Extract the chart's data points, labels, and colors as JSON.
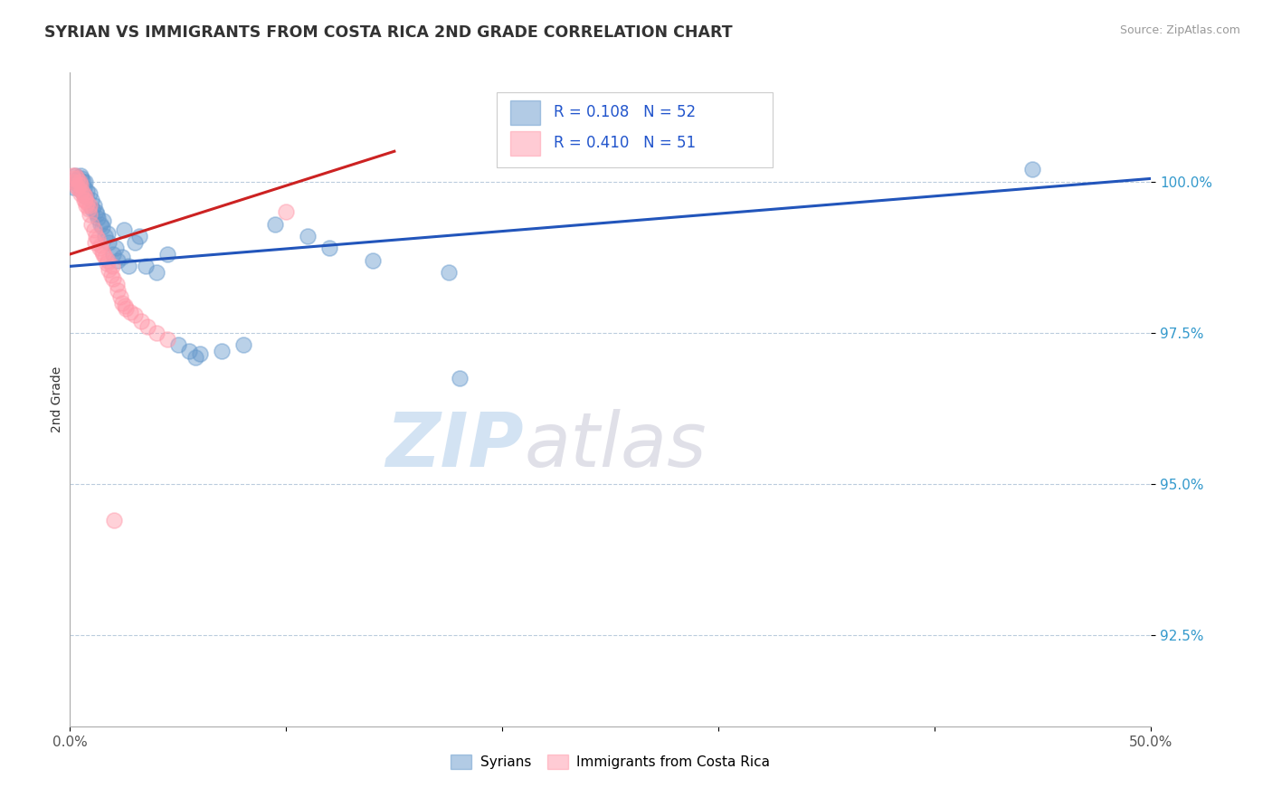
{
  "title": "SYRIAN VS IMMIGRANTS FROM COSTA RICA 2ND GRADE CORRELATION CHART",
  "source_text": "Source: ZipAtlas.com",
  "ylabel": "2nd Grade",
  "xlim": [
    0.0,
    50.0
  ],
  "ylim": [
    91.0,
    101.8
  ],
  "yticks": [
    92.5,
    95.0,
    97.5,
    100.0
  ],
  "ytick_labels": [
    "92.5%",
    "95.0%",
    "97.5%",
    "100.0%"
  ],
  "xticks": [
    0.0,
    10.0,
    20.0,
    30.0,
    40.0,
    50.0
  ],
  "xtick_labels": [
    "0.0%",
    "",
    "",
    "",
    "",
    "50.0%"
  ],
  "blue_color": "#6699CC",
  "pink_color": "#FF99AA",
  "line_blue_color": "#2255BB",
  "line_pink_color": "#CC2222",
  "legend_r_blue": "R = 0.108",
  "legend_n_blue": "N = 52",
  "legend_r_pink": "R = 0.410",
  "legend_n_pink": "N = 51",
  "legend_label_blue": "Syrians",
  "legend_label_pink": "Immigrants from Costa Rica",
  "blue_line_x0": 0.0,
  "blue_line_y0": 98.6,
  "blue_line_x1": 50.0,
  "blue_line_y1": 100.05,
  "pink_line_x0": 0.0,
  "pink_line_y0": 98.8,
  "pink_line_x1": 15.0,
  "pink_line_y1": 100.5,
  "blue_scatter_x": [
    0.15,
    0.2,
    0.25,
    0.3,
    0.35,
    0.4,
    0.5,
    0.55,
    0.6,
    0.65,
    0.7,
    0.8,
    0.9,
    1.0,
    1.1,
    1.2,
    1.3,
    1.4,
    1.5,
    1.6,
    1.8,
    2.0,
    2.2,
    2.5,
    3.0,
    3.5,
    4.5,
    5.0,
    5.5,
    6.0,
    7.0,
    8.0,
    9.5,
    11.0,
    12.0,
    14.0,
    17.5,
    44.5,
    0.45,
    0.55,
    0.75,
    1.05,
    1.25,
    1.55,
    1.75,
    2.1,
    2.4,
    2.7,
    3.2,
    4.0,
    5.8,
    18.0
  ],
  "blue_scatter_y": [
    99.9,
    100.0,
    100.1,
    100.0,
    100.05,
    99.95,
    100.1,
    100.05,
    100.0,
    99.9,
    100.0,
    99.85,
    99.8,
    99.7,
    99.6,
    99.5,
    99.4,
    99.3,
    99.25,
    99.1,
    99.0,
    98.8,
    98.7,
    99.2,
    99.0,
    98.6,
    98.8,
    97.3,
    97.2,
    97.15,
    97.2,
    97.3,
    99.3,
    99.1,
    98.9,
    98.7,
    98.5,
    100.2,
    99.95,
    99.85,
    99.75,
    99.55,
    99.45,
    99.35,
    99.15,
    98.9,
    98.75,
    98.6,
    99.1,
    98.5,
    97.1,
    96.75
  ],
  "pink_scatter_x": [
    0.1,
    0.15,
    0.2,
    0.25,
    0.3,
    0.35,
    0.4,
    0.45,
    0.5,
    0.55,
    0.6,
    0.65,
    0.7,
    0.75,
    0.8,
    0.85,
    0.9,
    1.0,
    1.1,
    1.2,
    1.3,
    1.4,
    1.5,
    1.6,
    1.7,
    1.8,
    1.9,
    2.0,
    2.2,
    2.4,
    2.6,
    2.8,
    3.0,
    3.3,
    3.6,
    4.0,
    4.5,
    0.3,
    0.5,
    0.7,
    0.9,
    1.15,
    1.35,
    1.55,
    1.75,
    1.95,
    2.15,
    2.35,
    2.55,
    2.05,
    10.0
  ],
  "pink_scatter_y": [
    100.1,
    100.05,
    100.0,
    100.1,
    100.05,
    99.9,
    99.95,
    100.0,
    99.95,
    99.85,
    99.8,
    99.7,
    99.75,
    99.6,
    99.65,
    99.55,
    99.45,
    99.3,
    99.2,
    99.1,
    99.05,
    98.95,
    98.85,
    98.75,
    98.65,
    98.55,
    98.45,
    98.4,
    98.2,
    98.0,
    97.9,
    97.85,
    97.8,
    97.7,
    97.6,
    97.5,
    97.4,
    99.9,
    99.8,
    99.7,
    99.6,
    99.0,
    98.9,
    98.8,
    98.7,
    98.6,
    98.3,
    98.1,
    97.95,
    94.4,
    99.5
  ]
}
